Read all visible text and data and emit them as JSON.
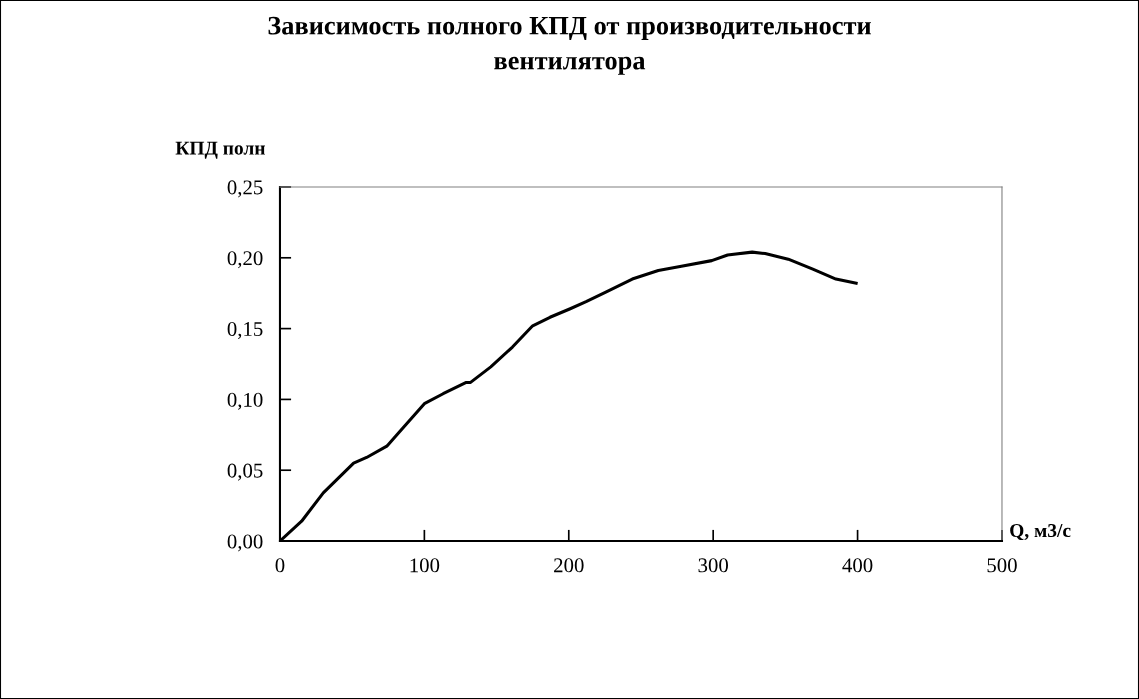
{
  "chart_data": {
    "type": "line",
    "title": "Зависимость полного КПД от производительности\nвентилятора",
    "xlabel": "Q, м3/с",
    "ylabel": "КПД полн",
    "x": [
      0,
      15,
      30,
      51,
      60,
      74,
      81,
      100,
      113,
      129,
      132,
      146,
      161,
      175,
      187,
      201,
      212,
      226,
      244,
      262,
      278,
      299,
      310,
      327,
      336,
      352,
      369,
      385,
      399
    ],
    "series": [
      {
        "color": "#000000",
        "values": [
          0,
          0.014,
          0.034,
          0.055,
          0.059,
          0.067,
          0.075,
          0.097,
          0.104,
          0.112,
          0.112,
          0.123,
          0.137,
          0.152,
          0.158,
          0.164,
          0.169,
          0.176,
          0.185,
          0.191,
          0.194,
          0.198,
          0.202,
          0.204,
          0.203,
          0.199,
          0.192,
          0.185,
          0.182
        ]
      }
    ],
    "xlim": [
      0,
      500
    ],
    "xticks": [
      0,
      100,
      200,
      300,
      400,
      500
    ],
    "ylim": [
      0,
      0.25
    ],
    "yticks": [
      {
        "value": 0,
        "label": "0,00"
      },
      {
        "value": 0.05,
        "label": "0,05"
      },
      {
        "value": 0.1,
        "label": "0,10"
      },
      {
        "value": 0.15,
        "label": "0,15"
      },
      {
        "value": 0.2,
        "label": "0,20"
      },
      {
        "value": 0.25,
        "label": "0,25"
      }
    ],
    "grid": false,
    "legend": false,
    "marker": "none",
    "line_style": "solid"
  }
}
